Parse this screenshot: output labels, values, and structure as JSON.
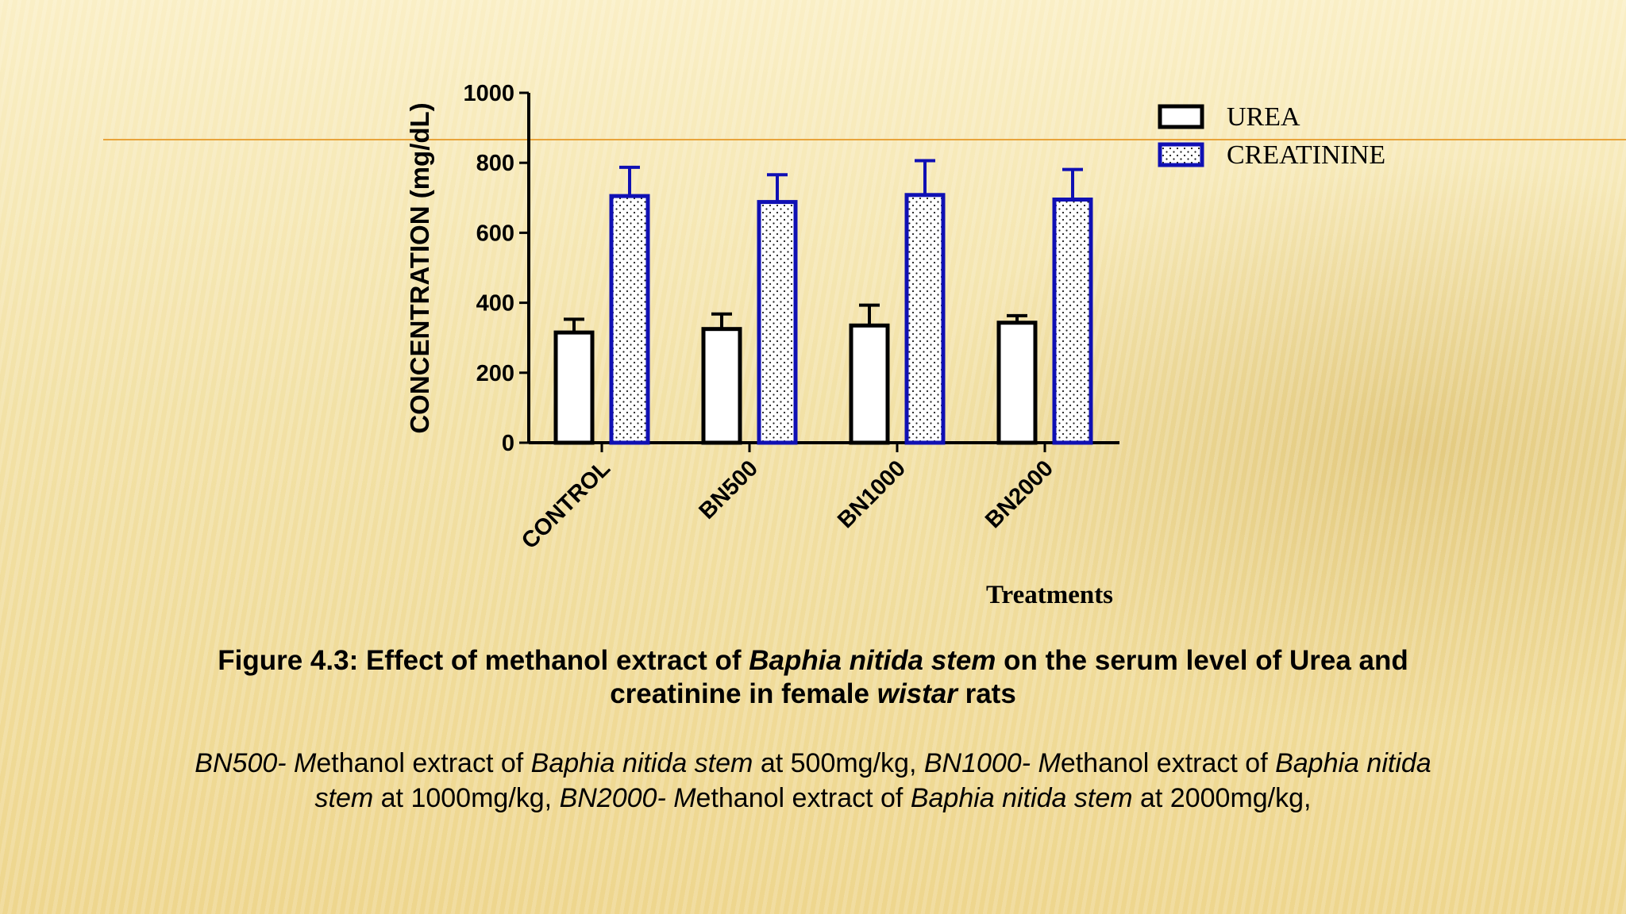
{
  "chart_data": {
    "type": "bar",
    "categories": [
      "CONTROL",
      "BN500",
      "BN1000",
      "BN2000"
    ],
    "series": [
      {
        "name": "UREA",
        "values": [
          315,
          325,
          335,
          343
        ],
        "errors": [
          38,
          43,
          58,
          20
        ],
        "color": "#000000",
        "pattern": "none"
      },
      {
        "name": "CREATININE",
        "values": [
          705,
          688,
          708,
          695
        ],
        "errors": [
          82,
          78,
          98,
          86
        ],
        "color": "#1010b4",
        "pattern": "dots"
      }
    ],
    "title": "",
    "xlabel": "Treatments",
    "ylabel": "CONCENTRATION (mg/dL)",
    "ylim": [
      0,
      1000
    ],
    "yticks": [
      0,
      200,
      400,
      600,
      800,
      1000
    ],
    "legend_position": "top-right",
    "grid": false
  },
  "caption": {
    "main_a": "Figure 4.3: Effect of methanol extract of ",
    "main_b": "Baphia nitida stem",
    "main_c": " on the serum level of Urea and",
    "main_d": "creatinine in female ",
    "main_e": "wistar",
    "main_f": " rats"
  },
  "note": {
    "p1": "BN500- M",
    "p2": "ethanol extract of ",
    "p3": "Baphia nitida stem",
    "p4": " at 500mg/kg, ",
    "p5": "BN1000- M",
    "p6": "ethanol extract of ",
    "p7": "Baphia nitida",
    "p8": "stem",
    "p9": " at 1000mg/kg, ",
    "p10": "BN2000- M",
    "p11": "ethanol extract of ",
    "p12": "Baphia nitida stem",
    "p13": " at 2000mg/kg,"
  },
  "decor": {
    "accent_line_color": "#e8a33a"
  }
}
